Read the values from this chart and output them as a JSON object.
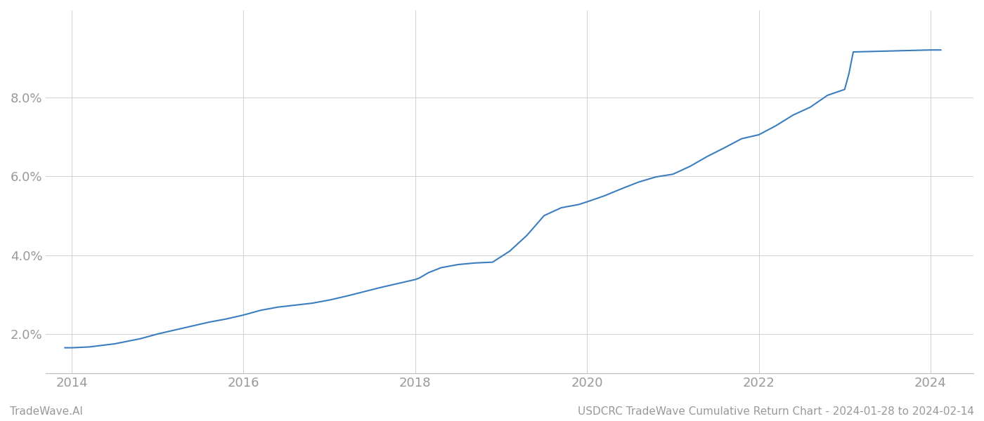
{
  "title": "USDCRC TradeWave Cumulative Return Chart - 2024-01-28 to 2024-02-14",
  "watermark": "TradeWave.AI",
  "line_color": "#3a7ebf",
  "background_color": "#ffffff",
  "grid_color": "#d0d0d0",
  "data_x": [
    2013.92,
    2014.0,
    2014.1,
    2014.2,
    2014.5,
    2014.8,
    2015.0,
    2015.2,
    2015.4,
    2015.6,
    2015.8,
    2016.0,
    2016.2,
    2016.4,
    2016.6,
    2016.8,
    2017.0,
    2017.2,
    2017.4,
    2017.6,
    2017.8,
    2018.0,
    2018.05,
    2018.15,
    2018.3,
    2018.5,
    2018.7,
    2018.9,
    2019.1,
    2019.3,
    2019.5,
    2019.7,
    2019.9,
    2020.0,
    2020.2,
    2020.4,
    2020.6,
    2020.8,
    2021.0,
    2021.2,
    2021.4,
    2021.6,
    2021.8,
    2022.0,
    2022.2,
    2022.4,
    2022.6,
    2022.8,
    2023.0,
    2023.05,
    2023.1,
    2024.0,
    2024.12
  ],
  "data_y": [
    1.65,
    1.65,
    1.66,
    1.67,
    1.75,
    1.88,
    2.0,
    2.1,
    2.2,
    2.3,
    2.38,
    2.48,
    2.6,
    2.68,
    2.73,
    2.78,
    2.86,
    2.96,
    3.07,
    3.18,
    3.28,
    3.38,
    3.42,
    3.55,
    3.68,
    3.76,
    3.8,
    3.82,
    4.1,
    4.5,
    5.0,
    5.2,
    5.28,
    5.35,
    5.5,
    5.68,
    5.85,
    5.98,
    6.05,
    6.25,
    6.5,
    6.72,
    6.95,
    7.05,
    7.28,
    7.55,
    7.75,
    8.05,
    8.2,
    8.6,
    9.15,
    9.2,
    9.2
  ],
  "ylim": [
    1.0,
    10.2
  ],
  "yticks": [
    2.0,
    4.0,
    6.0,
    8.0
  ],
  "ytick_labels": [
    "2.0%",
    "4.0%",
    "6.0%",
    "8.0%"
  ],
  "xtick_labels": [
    "2014",
    "2016",
    "2018",
    "2020",
    "2022",
    "2024"
  ],
  "xticks": [
    2014,
    2016,
    2018,
    2020,
    2022,
    2024
  ],
  "xlim": [
    2013.7,
    2024.5
  ],
  "line_width": 1.5,
  "tick_color": "#999999",
  "tick_fontsize": 13,
  "footer_fontsize": 11,
  "footer_color": "#999999"
}
